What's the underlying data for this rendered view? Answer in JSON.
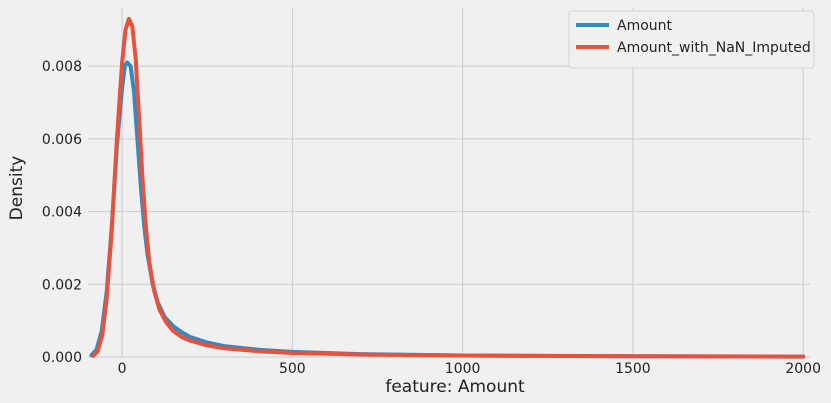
{
  "chart_data": {
    "type": "line",
    "title": "",
    "xlabel": "feature: Amount",
    "ylabel": "Density",
    "xlim": [
      -100,
      2020
    ],
    "ylim": [
      0,
      0.0096
    ],
    "grid": true,
    "legend_position": "top-right",
    "x_ticks": [
      {
        "value": 0,
        "label": "0"
      },
      {
        "value": 500,
        "label": "500"
      },
      {
        "value": 1000,
        "label": "1000"
      },
      {
        "value": 1500,
        "label": "1500"
      },
      {
        "value": 2000,
        "label": "2000"
      }
    ],
    "y_ticks": [
      {
        "value": 0,
        "label": "0.000"
      },
      {
        "value": 0.002,
        "label": "0.002"
      },
      {
        "value": 0.004,
        "label": "0.004"
      },
      {
        "value": 0.006,
        "label": "0.006"
      },
      {
        "value": 0.008,
        "label": "0.008"
      }
    ],
    "series": [
      {
        "name": "Amount",
        "color": "#348abd",
        "points": [
          [
            -90,
            5e-05
          ],
          [
            -75,
            0.0002
          ],
          [
            -60,
            0.0007
          ],
          [
            -45,
            0.0018
          ],
          [
            -30,
            0.0036
          ],
          [
            -15,
            0.0058
          ],
          [
            0,
            0.0074
          ],
          [
            8,
            0.008
          ],
          [
            15,
            0.0081
          ],
          [
            25,
            0.008
          ],
          [
            35,
            0.0073
          ],
          [
            45,
            0.006
          ],
          [
            55,
            0.0047
          ],
          [
            65,
            0.0036
          ],
          [
            75,
            0.0028
          ],
          [
            90,
            0.002
          ],
          [
            105,
            0.0015
          ],
          [
            125,
            0.0011
          ],
          [
            150,
            0.00085
          ],
          [
            175,
            0.00068
          ],
          [
            200,
            0.00055
          ],
          [
            250,
            0.0004
          ],
          [
            300,
            0.0003
          ],
          [
            400,
            0.0002
          ],
          [
            500,
            0.00014
          ],
          [
            700,
            8e-05
          ],
          [
            1000,
            4e-05
          ],
          [
            1500,
            2e-05
          ],
          [
            2000,
            1e-05
          ]
        ]
      },
      {
        "name": "Amount_with_NaN_Imputed",
        "color": "#e5533e",
        "points": [
          [
            -85,
            3e-05
          ],
          [
            -72,
            0.00015
          ],
          [
            -58,
            0.0006
          ],
          [
            -45,
            0.0016
          ],
          [
            -30,
            0.0035
          ],
          [
            -15,
            0.006
          ],
          [
            0,
            0.0081
          ],
          [
            10,
            0.009
          ],
          [
            20,
            0.0093
          ],
          [
            30,
            0.0091
          ],
          [
            40,
            0.0082
          ],
          [
            50,
            0.0066
          ],
          [
            60,
            0.0049
          ],
          [
            70,
            0.0036
          ],
          [
            80,
            0.0026
          ],
          [
            95,
            0.0018
          ],
          [
            110,
            0.0013
          ],
          [
            130,
            0.00095
          ],
          [
            150,
            0.00072
          ],
          [
            175,
            0.00055
          ],
          [
            200,
            0.00045
          ],
          [
            250,
            0.00032
          ],
          [
            300,
            0.00024
          ],
          [
            400,
            0.00016
          ],
          [
            500,
            0.00011
          ],
          [
            700,
            7e-05
          ],
          [
            1000,
            4e-05
          ],
          [
            1500,
            2e-05
          ],
          [
            2000,
            1e-05
          ]
        ]
      }
    ]
  }
}
